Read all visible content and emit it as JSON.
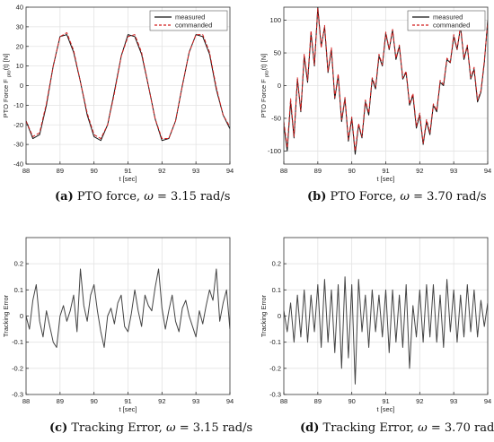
{
  "colors": {
    "measured": "#111111",
    "commanded": "#d21f1f",
    "tracking": "#444444",
    "grid": "#e3e3e3",
    "axis": "#333333"
  },
  "chart_data": [
    {
      "id": "a",
      "type": "line",
      "caption_label": "(a)",
      "caption_text": "PTO force,",
      "caption_symbol": "ω",
      "caption_value": "= 3.15 rad/s",
      "xlabel": "t [sec]",
      "ylabel": "PTO Force F",
      "ylabel_sub": "pto",
      "ylabel_tail": "(t) [N]",
      "xlim": [
        88,
        94
      ],
      "ylim": [
        -40,
        40
      ],
      "xticks": [
        88,
        89,
        90,
        91,
        92,
        93,
        94
      ],
      "yticks": [
        -40,
        -30,
        -20,
        -10,
        0,
        10,
        20,
        30,
        40
      ],
      "grid": true,
      "legend_position": "top-right",
      "legend": [
        "measured",
        "commanded"
      ],
      "x": [
        88.0,
        88.2,
        88.4,
        88.6,
        88.8,
        89.0,
        89.2,
        89.4,
        89.6,
        89.8,
        90.0,
        90.2,
        90.4,
        90.6,
        90.8,
        91.0,
        91.2,
        91.4,
        91.6,
        91.8,
        92.0,
        92.2,
        92.4,
        92.6,
        92.8,
        93.0,
        93.2,
        93.4,
        93.6,
        93.8,
        94.0
      ],
      "series": [
        {
          "name": "measured",
          "style": "solid",
          "values": [
            -18,
            -27,
            -25,
            -10,
            10,
            25,
            26,
            17,
            2,
            -15,
            -26,
            -28,
            -20,
            -3,
            15,
            26,
            25,
            16,
            0,
            -17,
            -28,
            -27,
            -18,
            0,
            17,
            26,
            25,
            16,
            -2,
            -15,
            -22
          ]
        },
        {
          "name": "commanded",
          "style": "dashed",
          "values": [
            -18,
            -26,
            -24,
            -9,
            10,
            25,
            27,
            18,
            2,
            -14,
            -25,
            -27,
            -20,
            -4,
            15,
            25,
            26,
            17,
            0,
            -17,
            -27,
            -27,
            -18,
            0,
            17,
            26,
            26,
            17,
            -1,
            -15,
            -21
          ]
        }
      ]
    },
    {
      "id": "b",
      "type": "line",
      "caption_label": "(b)",
      "caption_text": "PTO Force,",
      "caption_symbol": "ω",
      "caption_value": "= 3.70 rad/s",
      "xlabel": "t [sec]",
      "ylabel": "PTO Force F",
      "ylabel_sub": "pto",
      "ylabel_tail": "(t) [N]",
      "xlim": [
        88,
        94
      ],
      "ylim": [
        -120,
        120
      ],
      "xticks": [
        88,
        89,
        90,
        91,
        92,
        93,
        94
      ],
      "yticks": [
        -100,
        -50,
        0,
        50,
        100
      ],
      "grid": true,
      "legend_position": "top-right",
      "legend": [
        "measured",
        "commanded"
      ],
      "x": [
        88.0,
        88.1,
        88.2,
        88.3,
        88.4,
        88.5,
        88.6,
        88.7,
        88.8,
        88.9,
        89.0,
        89.1,
        89.2,
        89.3,
        89.4,
        89.5,
        89.6,
        89.7,
        89.8,
        89.9,
        90.0,
        90.1,
        90.2,
        90.3,
        90.4,
        90.5,
        90.6,
        90.7,
        90.8,
        90.9,
        91.0,
        91.1,
        91.2,
        91.3,
        91.4,
        91.5,
        91.6,
        91.7,
        91.8,
        91.9,
        92.0,
        92.1,
        92.2,
        92.3,
        92.4,
        92.5,
        92.6,
        92.7,
        92.8,
        92.9,
        93.0,
        93.1,
        93.2,
        93.3,
        93.4,
        93.5,
        93.6,
        93.7,
        93.8,
        93.9,
        94.0
      ],
      "series": [
        {
          "name": "measured",
          "style": "solid",
          "values": [
            -60,
            -100,
            -25,
            -80,
            10,
            -40,
            45,
            5,
            80,
            30,
            120,
            60,
            90,
            20,
            55,
            -20,
            15,
            -55,
            -20,
            -85,
            -50,
            -105,
            -60,
            -80,
            -25,
            -45,
            10,
            -5,
            45,
            30,
            80,
            55,
            85,
            40,
            60,
            10,
            20,
            -30,
            -15,
            -65,
            -45,
            -90,
            -55,
            -75,
            -30,
            -40,
            5,
            0,
            40,
            35,
            75,
            55,
            90,
            40,
            60,
            10,
            25,
            -25,
            -10,
            35,
            100
          ]
        },
        {
          "name": "commanded",
          "style": "dashed",
          "values": [
            -55,
            -95,
            -20,
            -78,
            12,
            -38,
            48,
            8,
            84,
            32,
            118,
            58,
            92,
            22,
            58,
            -18,
            18,
            -52,
            -18,
            -82,
            -48,
            -100,
            -58,
            -78,
            -22,
            -42,
            12,
            -2,
            48,
            32,
            82,
            56,
            86,
            42,
            62,
            12,
            22,
            -28,
            -12,
            -62,
            -42,
            -88,
            -52,
            -72,
            -28,
            -38,
            8,
            2,
            42,
            36,
            78,
            56,
            92,
            42,
            62,
            12,
            28,
            -22,
            -8,
            38,
            98
          ]
        }
      ]
    },
    {
      "id": "c",
      "type": "line",
      "caption_label": "(c)",
      "caption_text": "Tracking Error,",
      "caption_symbol": "ω",
      "caption_value": "= 3.15 rad/s",
      "xlabel": "t [sec]",
      "ylabel": "Tracking Error",
      "xlim": [
        88,
        94
      ],
      "ylim": [
        -0.3,
        0.3
      ],
      "xticks": [
        88,
        89,
        90,
        91,
        92,
        93,
        94
      ],
      "yticks": [
        -0.3,
        -0.2,
        -0.1,
        0,
        0.1,
        0.2
      ],
      "grid": true,
      "x": [
        88.0,
        88.1,
        88.2,
        88.3,
        88.4,
        88.5,
        88.6,
        88.7,
        88.8,
        88.9,
        89.0,
        89.1,
        89.2,
        89.3,
        89.4,
        89.5,
        89.6,
        89.7,
        89.8,
        89.9,
        90.0,
        90.1,
        90.2,
        90.3,
        90.4,
        90.5,
        90.6,
        90.7,
        90.8,
        90.9,
        91.0,
        91.1,
        91.2,
        91.3,
        91.4,
        91.5,
        91.6,
        91.7,
        91.8,
        91.9,
        92.0,
        92.1,
        92.2,
        92.3,
        92.4,
        92.5,
        92.6,
        92.7,
        92.8,
        92.9,
        93.0,
        93.1,
        93.2,
        93.3,
        93.4,
        93.5,
        93.6,
        93.7,
        93.8,
        93.9,
        94.0
      ],
      "series": [
        {
          "name": "",
          "style": "solid",
          "values": [
            0.0,
            -0.05,
            0.06,
            0.12,
            -0.02,
            -0.08,
            0.02,
            -0.04,
            -0.1,
            -0.12,
            0.0,
            0.04,
            -0.02,
            0.02,
            0.08,
            -0.06,
            0.18,
            0.04,
            -0.02,
            0.08,
            0.12,
            0.02,
            -0.06,
            -0.12,
            0.0,
            0.03,
            -0.03,
            0.05,
            0.08,
            -0.04,
            -0.06,
            0.01,
            0.1,
            0.02,
            -0.04,
            0.08,
            0.04,
            0.02,
            0.11,
            0.18,
            0.03,
            -0.05,
            0.02,
            0.08,
            -0.02,
            -0.06,
            0.03,
            0.06,
            0.0,
            -0.04,
            -0.08,
            0.02,
            -0.03,
            0.04,
            0.1,
            0.06,
            0.18,
            -0.02,
            0.05,
            0.1,
            -0.05
          ]
        }
      ]
    },
    {
      "id": "d",
      "type": "line",
      "caption_label": "(d)",
      "caption_text": "Tracking Error,",
      "caption_symbol": "ω",
      "caption_value": "= 3.70 rad/s",
      "xlabel": "t [sec]",
      "ylabel": "Tracking Error",
      "xlim": [
        88,
        94
      ],
      "ylim": [
        -0.3,
        0.3
      ],
      "xticks": [
        88,
        89,
        90,
        91,
        92,
        93,
        94
      ],
      "yticks": [
        -0.3,
        -0.2,
        -0.1,
        0,
        0.1,
        0.2
      ],
      "grid": true,
      "x": [
        88.0,
        88.1,
        88.2,
        88.3,
        88.4,
        88.5,
        88.6,
        88.7,
        88.8,
        88.9,
        89.0,
        89.1,
        89.2,
        89.3,
        89.4,
        89.5,
        89.6,
        89.7,
        89.8,
        89.9,
        90.0,
        90.1,
        90.2,
        90.3,
        90.4,
        90.5,
        90.6,
        90.7,
        90.8,
        90.9,
        91.0,
        91.1,
        91.2,
        91.3,
        91.4,
        91.5,
        91.6,
        91.7,
        91.8,
        91.9,
        92.0,
        92.1,
        92.2,
        92.3,
        92.4,
        92.5,
        92.6,
        92.7,
        92.8,
        92.9,
        93.0,
        93.1,
        93.2,
        93.3,
        93.4,
        93.5,
        93.6,
        93.7,
        93.8,
        93.9,
        94.0
      ],
      "series": [
        {
          "name": "",
          "style": "solid",
          "values": [
            0.02,
            -0.06,
            0.05,
            -0.1,
            0.08,
            -0.08,
            0.1,
            -0.1,
            0.08,
            -0.06,
            0.12,
            -0.12,
            0.14,
            -0.1,
            0.1,
            -0.14,
            0.12,
            -0.2,
            0.15,
            -0.16,
            0.12,
            -0.26,
            0.14,
            -0.06,
            0.08,
            -0.12,
            0.1,
            -0.06,
            0.08,
            -0.08,
            0.1,
            -0.14,
            0.1,
            -0.1,
            0.08,
            -0.12,
            0.12,
            -0.2,
            0.04,
            -0.08,
            0.1,
            -0.1,
            0.12,
            -0.08,
            0.12,
            -0.1,
            0.08,
            -0.12,
            0.14,
            -0.06,
            0.1,
            -0.1,
            0.08,
            -0.08,
            0.12,
            -0.06,
            0.1,
            -0.08,
            0.06,
            -0.04,
            0.05
          ]
        }
      ]
    }
  ]
}
